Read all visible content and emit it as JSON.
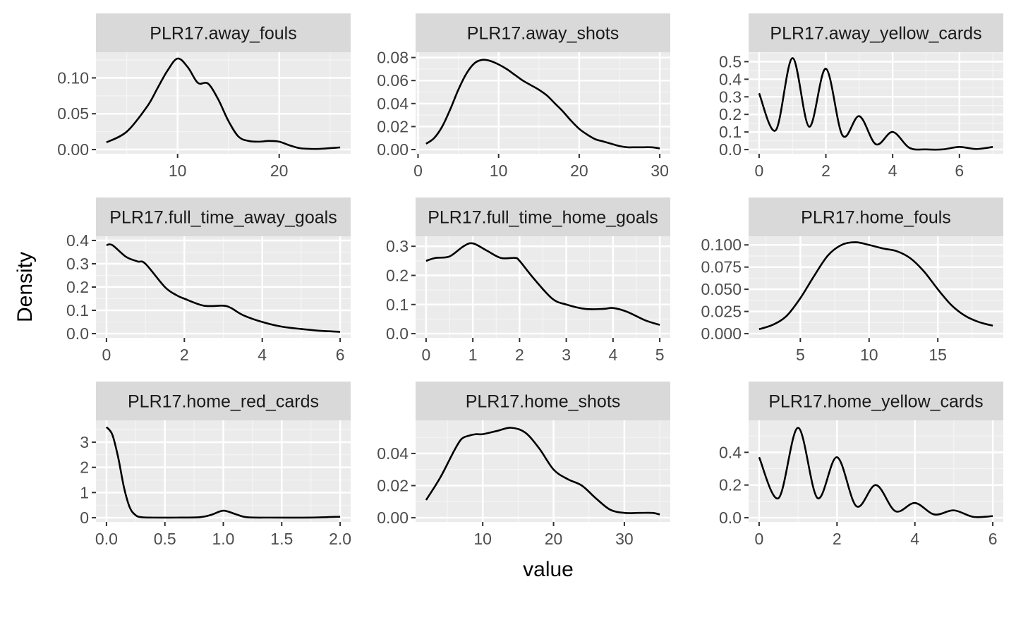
{
  "chart_data": {
    "type": "line",
    "chart_kind": "faceted density plot",
    "xlabel": "value",
    "ylabel": "Density",
    "grid": true,
    "panels": [
      {
        "facet": "PLR17.away_fouls",
        "xlim": [
          3,
          26
        ],
        "ylim": [
          0,
          0.13
        ],
        "x_ticks": [
          10,
          20
        ],
        "x_tick_labels": [
          "10",
          "20"
        ],
        "y_ticks": [
          0,
          0.05,
          0.1
        ],
        "y_tick_labels": [
          "0.00",
          "0.05",
          "0.10"
        ],
        "series": [
          {
            "x": [
              3,
              5,
              7,
              8,
              9,
              10,
              11,
              12,
              13,
              14,
              15,
              16,
              17,
              18,
              19,
              20,
              21,
              22,
              23,
              24,
              25,
              26
            ],
            "y": [
              0.01,
              0.025,
              0.06,
              0.085,
              0.11,
              0.127,
              0.115,
              0.093,
              0.092,
              0.07,
              0.04,
              0.018,
              0.012,
              0.011,
              0.012,
              0.011,
              0.006,
              0.002,
              0.001,
              0.001,
              0.002,
              0.003
            ]
          }
        ]
      },
      {
        "facet": "PLR17.away_shots",
        "xlim": [
          1,
          30
        ],
        "ylim": [
          0,
          0.081
        ],
        "x_ticks": [
          0,
          10,
          20,
          30
        ],
        "x_tick_labels": [
          "0",
          "10",
          "20",
          "30"
        ],
        "y_ticks": [
          0,
          0.02,
          0.04,
          0.06,
          0.08
        ],
        "y_tick_labels": [
          "0.00",
          "0.02",
          "0.04",
          "0.06",
          "0.08"
        ],
        "series": [
          {
            "x": [
              1,
              2,
              3,
              4,
              5,
              6,
              7,
              8,
              9,
              10,
              11,
              12,
              13,
              14,
              15,
              16,
              17,
              18,
              19,
              20,
              21,
              22,
              23,
              24,
              25,
              26,
              27,
              28,
              29,
              30
            ],
            "y": [
              0.005,
              0.01,
              0.02,
              0.035,
              0.052,
              0.066,
              0.075,
              0.078,
              0.077,
              0.074,
              0.07,
              0.065,
              0.06,
              0.056,
              0.052,
              0.047,
              0.04,
              0.033,
              0.025,
              0.018,
              0.013,
              0.009,
              0.007,
              0.005,
              0.003,
              0.002,
              0.002,
              0.002,
              0.002,
              0.001
            ]
          }
        ]
      },
      {
        "facet": "PLR17.away_yellow_cards",
        "xlim": [
          0,
          7
        ],
        "ylim": [
          0,
          0.53
        ],
        "x_ticks": [
          0,
          2,
          4,
          6
        ],
        "x_tick_labels": [
          "0",
          "2",
          "4",
          "6"
        ],
        "y_ticks": [
          0,
          0.1,
          0.2,
          0.3,
          0.4,
          0.5
        ],
        "y_tick_labels": [
          "0.0",
          "0.1",
          "0.2",
          "0.3",
          "0.4",
          "0.5"
        ],
        "series": [
          {
            "x": [
              0,
              0.5,
              1,
              1.5,
              2,
              2.5,
              3,
              3.5,
              4,
              4.5,
              5,
              5.5,
              6,
              6.5,
              7
            ],
            "y": [
              0.32,
              0.11,
              0.52,
              0.13,
              0.46,
              0.08,
              0.19,
              0.03,
              0.1,
              0.01,
              0.001,
              0.001,
              0.015,
              0.003,
              0.015
            ]
          }
        ]
      },
      {
        "facet": "PLR17.full_time_away_goals",
        "xlim": [
          0,
          6
        ],
        "ylim": [
          0,
          0.4
        ],
        "x_ticks": [
          0,
          2,
          4,
          6
        ],
        "x_tick_labels": [
          "0",
          "2",
          "4",
          "6"
        ],
        "y_ticks": [
          0,
          0.1,
          0.2,
          0.3,
          0.4
        ],
        "y_tick_labels": [
          "0.0",
          "0.1",
          "0.2",
          "0.3",
          "0.4"
        ],
        "series": [
          {
            "x": [
              0,
              0.15,
              0.5,
              0.8,
              1,
              1.5,
              1.8,
              2,
              2.5,
              3,
              3.2,
              3.5,
              4,
              4.5,
              5,
              5.5,
              6
            ],
            "y": [
              0.38,
              0.38,
              0.33,
              0.31,
              0.3,
              0.2,
              0.165,
              0.15,
              0.12,
              0.12,
              0.11,
              0.08,
              0.05,
              0.03,
              0.02,
              0.012,
              0.008
            ]
          }
        ]
      },
      {
        "facet": "PLR17.full_time_home_goals",
        "xlim": [
          0,
          5
        ],
        "ylim": [
          0,
          0.32
        ],
        "x_ticks": [
          0,
          1,
          2,
          3,
          4,
          5
        ],
        "x_tick_labels": [
          "0",
          "1",
          "2",
          "3",
          "4",
          "5"
        ],
        "y_ticks": [
          0,
          0.1,
          0.2,
          0.3
        ],
        "y_tick_labels": [
          "0.0",
          "0.1",
          "0.2",
          "0.3"
        ],
        "series": [
          {
            "x": [
              0,
              0.2,
              0.5,
              0.8,
              1,
              1.3,
              1.6,
              1.9,
              2,
              2.3,
              2.7,
              3,
              3.4,
              3.8,
              4,
              4.3,
              4.7,
              5
            ],
            "y": [
              0.25,
              0.26,
              0.265,
              0.3,
              0.31,
              0.285,
              0.26,
              0.26,
              0.25,
              0.19,
              0.12,
              0.1,
              0.085,
              0.085,
              0.088,
              0.075,
              0.045,
              0.03
            ]
          }
        ]
      },
      {
        "facet": "PLR17.home_fouls",
        "xlim": [
          2,
          19
        ],
        "ylim": [
          0,
          0.105
        ],
        "x_ticks": [
          5,
          10,
          15
        ],
        "x_tick_labels": [
          "5",
          "10",
          "15"
        ],
        "y_ticks": [
          0,
          0.025,
          0.05,
          0.075,
          0.1
        ],
        "y_tick_labels": [
          "0.000",
          "0.025",
          "0.050",
          "0.075",
          "0.100"
        ],
        "series": [
          {
            "x": [
              2,
              3,
              4,
              5,
              6,
              7,
              8,
              9,
              10,
              11,
              12,
              13,
              14,
              15,
              16,
              17,
              18,
              19
            ],
            "y": [
              0.005,
              0.01,
              0.02,
              0.04,
              0.065,
              0.088,
              0.1,
              0.103,
              0.1,
              0.096,
              0.093,
              0.085,
              0.07,
              0.05,
              0.032,
              0.02,
              0.013,
              0.009
            ]
          }
        ]
      },
      {
        "facet": "PLR17.home_red_cards",
        "xlim": [
          0,
          2
        ],
        "ylim": [
          0,
          3.7
        ],
        "x_ticks": [
          0,
          0.5,
          1,
          1.5,
          2
        ],
        "x_tick_labels": [
          "0.0",
          "0.5",
          "1.0",
          "1.5",
          "2.0"
        ],
        "y_ticks": [
          0,
          1,
          2,
          3
        ],
        "y_tick_labels": [
          "0",
          "1",
          "2",
          "3"
        ],
        "series": [
          {
            "x": [
              0,
              0.05,
              0.1,
              0.15,
              0.2,
              0.25,
              0.3,
              0.4,
              0.6,
              0.8,
              0.9,
              1,
              1.1,
              1.2,
              1.4,
              1.6,
              1.8,
              2
            ],
            "y": [
              3.6,
              3.3,
              2.4,
              1.2,
              0.4,
              0.1,
              0.02,
              0.005,
              0.005,
              0.02,
              0.12,
              0.28,
              0.15,
              0.02,
              0.005,
              0.003,
              0.01,
              0.04
            ]
          }
        ]
      },
      {
        "facet": "PLR17.home_shots",
        "xlim": [
          2,
          35
        ],
        "ylim": [
          0,
          0.058
        ],
        "x_ticks": [
          10,
          20,
          30
        ],
        "x_tick_labels": [
          "10",
          "20",
          "30"
        ],
        "y_ticks": [
          0,
          0.02,
          0.04
        ],
        "y_tick_labels": [
          "0.00",
          "0.02",
          "0.04"
        ],
        "series": [
          {
            "x": [
              2,
              4,
              6,
              7,
              8,
              9,
              10,
              12,
              14,
              16,
              18,
              20,
              22,
              24,
              26,
              28,
              30,
              32,
              34,
              35
            ],
            "y": [
              0.011,
              0.025,
              0.042,
              0.049,
              0.051,
              0.052,
              0.052,
              0.054,
              0.056,
              0.053,
              0.043,
              0.03,
              0.024,
              0.02,
              0.012,
              0.005,
              0.003,
              0.003,
              0.003,
              0.002
            ]
          }
        ]
      },
      {
        "facet": "PLR17.home_yellow_cards",
        "xlim": [
          0,
          6
        ],
        "ylim": [
          0,
          0.57
        ],
        "x_ticks": [
          0,
          2,
          4,
          6
        ],
        "x_tick_labels": [
          "0",
          "2",
          "4",
          "6"
        ],
        "y_ticks": [
          0,
          0.2,
          0.4
        ],
        "y_tick_labels": [
          "0.0",
          "0.2",
          "0.4"
        ],
        "series": [
          {
            "x": [
              0,
              0.5,
              1,
              1.5,
              2,
              2.5,
              3,
              3.5,
              4,
              4.5,
              5,
              5.5,
              6
            ],
            "y": [
              0.37,
              0.12,
              0.55,
              0.12,
              0.37,
              0.07,
              0.2,
              0.04,
              0.09,
              0.02,
              0.045,
              0.005,
              0.01
            ]
          }
        ]
      }
    ]
  }
}
